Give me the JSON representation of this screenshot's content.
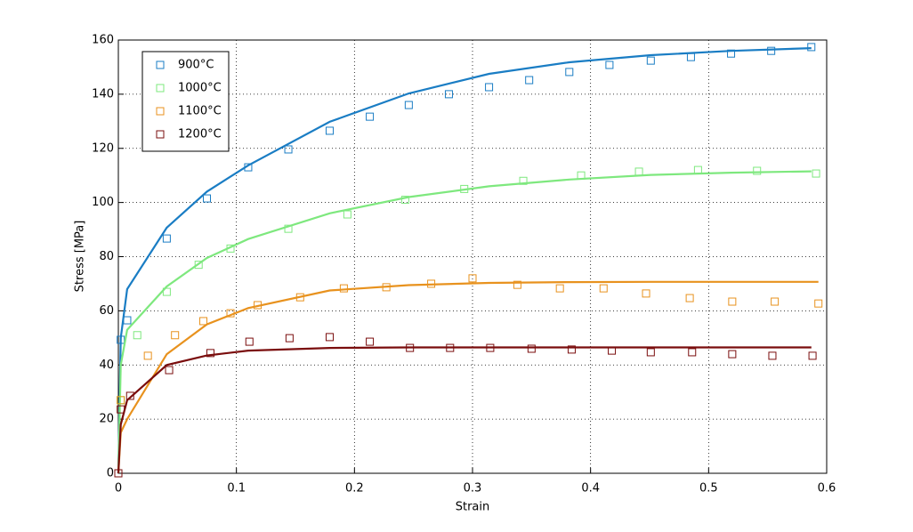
{
  "chart_data": {
    "type": "line",
    "xlabel": "Strain",
    "ylabel": "Stress [MPa]",
    "xlim": [
      0,
      0.6
    ],
    "xticks": [
      0,
      0.1,
      0.2,
      0.3,
      0.4,
      0.5,
      0.6
    ],
    "ylim": [
      0,
      160
    ],
    "yticks": [
      0,
      20,
      40,
      60,
      80,
      100,
      120,
      140,
      160
    ],
    "grid": true,
    "legend": "upper left",
    "series": [
      {
        "name": "900°C",
        "color": "#1a7dc4",
        "x": [
          0.002,
          0.0075,
          0.041,
          0.075,
          0.11,
          0.144,
          0.179,
          0.213,
          0.246,
          0.28,
          0.314,
          0.348,
          0.382,
          0.416,
          0.451,
          0.485,
          0.519,
          0.553,
          0.587
        ],
        "values": [
          49.3,
          56.5,
          86.7,
          101.5,
          113,
          119.6,
          126.5,
          131.7,
          136,
          140,
          142.6,
          145.2,
          148.2,
          150.8,
          152.4,
          153.7,
          155,
          156,
          157.4
        ],
        "fit_x": [
          0,
          0.002,
          0.0075,
          0.041,
          0.075,
          0.11,
          0.179,
          0.246,
          0.314,
          0.382,
          0.451,
          0.519,
          0.587
        ],
        "fit_values": [
          0,
          50,
          68,
          90.7,
          104,
          113.7,
          129.8,
          140.3,
          147.5,
          151.8,
          154.4,
          156,
          157
        ]
      },
      {
        "name": "1000°C",
        "color": "#7ee87e",
        "x": [
          0.002,
          0.016,
          0.041,
          0.068,
          0.095,
          0.144,
          0.194,
          0.243,
          0.293,
          0.343,
          0.392,
          0.441,
          0.491,
          0.541,
          0.591
        ],
        "values": [
          27,
          51,
          67,
          77,
          83,
          90.3,
          95.6,
          101,
          105,
          108,
          110,
          111.4,
          112,
          111.7,
          110.7
        ],
        "fit_x": [
          0,
          0.002,
          0.0075,
          0.041,
          0.075,
          0.11,
          0.179,
          0.246,
          0.314,
          0.382,
          0.451,
          0.519,
          0.587
        ],
        "fit_values": [
          0,
          40,
          53,
          69,
          79.5,
          86.5,
          96,
          102,
          106,
          108.5,
          110.2,
          111,
          111.5
        ]
      },
      {
        "name": "1100°C",
        "color": "#e8921e",
        "x": [
          0.002,
          0.025,
          0.048,
          0.072,
          0.095,
          0.118,
          0.154,
          0.191,
          0.227,
          0.265,
          0.3,
          0.338,
          0.374,
          0.411,
          0.447,
          0.484,
          0.52,
          0.556,
          0.593
        ],
        "values": [
          27,
          43.4,
          51,
          56.2,
          59.1,
          62.1,
          65,
          68.3,
          68.7,
          70,
          72,
          69.6,
          68.3,
          68.3,
          66.4,
          64.7,
          63.4,
          63.4,
          62.7
        ],
        "fit_x": [
          0,
          0.002,
          0.0075,
          0.041,
          0.075,
          0.11,
          0.179,
          0.246,
          0.314,
          0.382,
          0.451,
          0.519,
          0.593
        ],
        "fit_values": [
          0,
          15,
          20,
          44,
          55,
          61,
          67.5,
          69.5,
          70.3,
          70.6,
          70.7,
          70.7,
          70.7
        ]
      },
      {
        "name": "1200°C",
        "color": "#7a0d0d",
        "x": [
          0,
          0.002,
          0.01,
          0.043,
          0.078,
          0.111,
          0.145,
          0.179,
          0.213,
          0.247,
          0.281,
          0.315,
          0.35,
          0.384,
          0.418,
          0.451,
          0.486,
          0.52,
          0.554,
          0.588
        ],
        "values": [
          0,
          23.6,
          28.6,
          38.1,
          44.4,
          48.6,
          49.9,
          50.3,
          48.6,
          46.3,
          46.3,
          46.3,
          46,
          45.7,
          45.3,
          44.7,
          44.7,
          44,
          43.4,
          43.4
        ],
        "fit_x": [
          0,
          0.002,
          0.0075,
          0.041,
          0.075,
          0.11,
          0.179,
          0.246,
          0.314,
          0.382,
          0.451,
          0.519,
          0.587
        ],
        "fit_values": [
          0,
          18,
          27,
          40,
          43.5,
          45.3,
          46.3,
          46.5,
          46.5,
          46.5,
          46.5,
          46.5,
          46.5
        ]
      }
    ]
  }
}
